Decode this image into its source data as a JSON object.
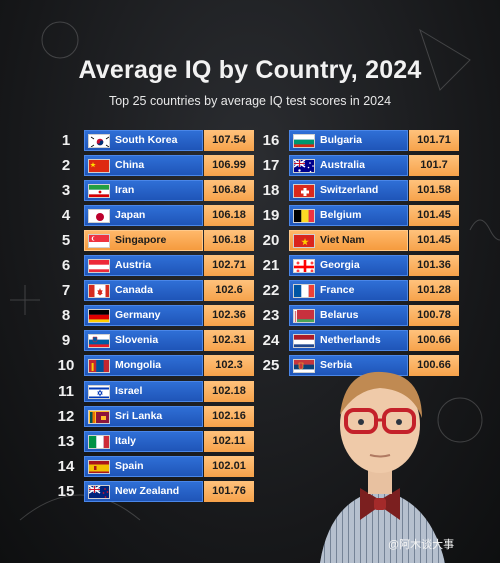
{
  "header": {
    "title": "Average IQ by Country, 2024",
    "subtitle": "Top 25 countries by average IQ test scores in 2024"
  },
  "colors": {
    "bar_blue": "#2563c9",
    "bar_highlight": "#f7a24a",
    "value_box": "#f7a850"
  },
  "chart_data": {
    "type": "bar",
    "title": "Average IQ by Country, 2024",
    "subtitle": "Top 25 countries by average IQ test scores in 2024",
    "xlabel": "",
    "ylabel": "",
    "categories": [
      "South Korea",
      "China",
      "Iran",
      "Japan",
      "Singapore",
      "Austria",
      "Canada",
      "Germany",
      "Slovenia",
      "Mongolia",
      "Israel",
      "Sri Lanka",
      "Italy",
      "Spain",
      "New Zealand",
      "Bulgaria",
      "Australia",
      "Switzerland",
      "Belgium",
      "Viet Nam",
      "Georgia",
      "France",
      "Belarus",
      "Netherlands",
      "Serbia"
    ],
    "ranks": [
      "1",
      "2",
      "3",
      "4",
      "5",
      "6",
      "7",
      "8",
      "9",
      "10",
      "11",
      "12",
      "13",
      "14",
      "15",
      "16",
      "17",
      "18",
      "19",
      "20",
      "21",
      "22",
      "23",
      "24",
      "25"
    ],
    "values": [
      107.54,
      106.99,
      106.84,
      106.18,
      106.18,
      102.71,
      102.6,
      102.36,
      102.31,
      102.3,
      102.18,
      102.16,
      102.11,
      102.01,
      101.76,
      101.71,
      101.7,
      101.58,
      101.45,
      101.45,
      101.36,
      101.28,
      100.78,
      100.66,
      100.66
    ],
    "value_labels": [
      "107.54",
      "106.99",
      "106.84",
      "106.18",
      "106.18",
      "102.71",
      "102.6",
      "102.36",
      "102.31",
      "102.3",
      "102.18",
      "102.16",
      "102.11",
      "102.01",
      "101.76",
      "101.71",
      "101.7",
      "101.58",
      "101.45",
      "101.45",
      "101.36",
      "101.28",
      "100.78",
      "100.66",
      "100.66"
    ],
    "highlighted": [
      "Singapore",
      "Viet Nam"
    ],
    "flags": [
      "south-korea-flag-icon",
      "china-flag-icon",
      "iran-flag-icon",
      "japan-flag-icon",
      "singapore-flag-icon",
      "austria-flag-icon",
      "canada-flag-icon",
      "germany-flag-icon",
      "slovenia-flag-icon",
      "mongolia-flag-icon",
      "israel-flag-icon",
      "sri-lanka-flag-icon",
      "italy-flag-icon",
      "spain-flag-icon",
      "new-zealand-flag-icon",
      "bulgaria-flag-icon",
      "australia-flag-icon",
      "switzerland-flag-icon",
      "belgium-flag-icon",
      "viet-nam-flag-icon",
      "georgia-flag-icon",
      "france-flag-icon",
      "belarus-flag-icon",
      "netherlands-flag-icon",
      "serbia-flag-icon"
    ],
    "layout": "two-columns"
  },
  "watermark": {
    "text": "@阿木谈大事"
  }
}
